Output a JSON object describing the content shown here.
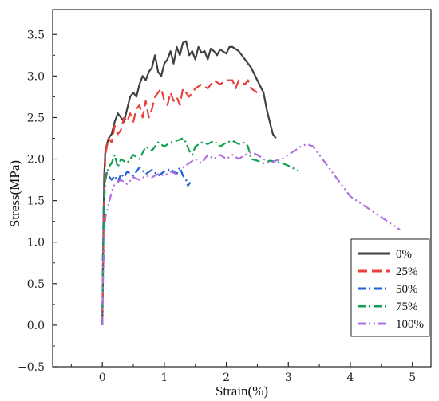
{
  "chart_data": {
    "type": "line",
    "title": "",
    "xlabel": "Strain(%)",
    "ylabel": "Stress(MPa)",
    "xlim": [
      -0.8,
      5.3
    ],
    "ylim": [
      -0.5,
      3.8
    ],
    "xticks": [
      0,
      1,
      2,
      3,
      4,
      5
    ],
    "xtick_labels": [
      "0",
      "1",
      "2",
      "3",
      "4",
      "5"
    ],
    "yticks": [
      -0.5,
      0.0,
      0.5,
      1.0,
      1.5,
      2.0,
      2.5,
      3.0,
      3.5
    ],
    "ytick_labels": [
      "−0.5",
      "0.0",
      "0.5",
      "1.0",
      "1.5",
      "2.0",
      "2.5",
      "3.0",
      "3.5"
    ],
    "grid": false,
    "legend_position": "bottom-right",
    "series": [
      {
        "name": "0%",
        "color": "#404040",
        "dash": "solid",
        "points": [
          [
            0,
            0
          ],
          [
            0.01,
            0.5
          ],
          [
            0.02,
            1.2
          ],
          [
            0.03,
            1.8
          ],
          [
            0.05,
            2.1
          ],
          [
            0.1,
            2.25
          ],
          [
            0.15,
            2.3
          ],
          [
            0.2,
            2.45
          ],
          [
            0.25,
            2.55
          ],
          [
            0.3,
            2.5
          ],
          [
            0.35,
            2.45
          ],
          [
            0.4,
            2.6
          ],
          [
            0.45,
            2.75
          ],
          [
            0.5,
            2.8
          ],
          [
            0.55,
            2.75
          ],
          [
            0.6,
            2.9
          ],
          [
            0.65,
            3.0
          ],
          [
            0.7,
            2.95
          ],
          [
            0.75,
            3.05
          ],
          [
            0.8,
            3.1
          ],
          [
            0.85,
            3.25
          ],
          [
            0.9,
            3.05
          ],
          [
            0.95,
            3.0
          ],
          [
            1.0,
            3.15
          ],
          [
            1.05,
            3.2
          ],
          [
            1.1,
            3.3
          ],
          [
            1.15,
            3.15
          ],
          [
            1.2,
            3.35
          ],
          [
            1.25,
            3.25
          ],
          [
            1.3,
            3.4
          ],
          [
            1.35,
            3.42
          ],
          [
            1.4,
            3.25
          ],
          [
            1.45,
            3.3
          ],
          [
            1.5,
            3.2
          ],
          [
            1.55,
            3.35
          ],
          [
            1.6,
            3.28
          ],
          [
            1.65,
            3.3
          ],
          [
            1.7,
            3.2
          ],
          [
            1.75,
            3.33
          ],
          [
            1.8,
            3.3
          ],
          [
            1.85,
            3.25
          ],
          [
            1.9,
            3.32
          ],
          [
            2.0,
            3.27
          ],
          [
            2.05,
            3.35
          ],
          [
            2.1,
            3.35
          ],
          [
            2.2,
            3.3
          ],
          [
            2.3,
            3.2
          ],
          [
            2.4,
            3.1
          ],
          [
            2.5,
            2.95
          ],
          [
            2.6,
            2.8
          ],
          [
            2.65,
            2.6
          ],
          [
            2.7,
            2.45
          ],
          [
            2.75,
            2.3
          ],
          [
            2.8,
            2.25
          ]
        ]
      },
      {
        "name": "25%",
        "color": "#e8403a",
        "dash": "dashed",
        "points": [
          [
            0,
            0
          ],
          [
            0.01,
            0.6
          ],
          [
            0.02,
            1.3
          ],
          [
            0.04,
            1.8
          ],
          [
            0.05,
            2.05
          ],
          [
            0.1,
            2.25
          ],
          [
            0.15,
            2.2
          ],
          [
            0.2,
            2.4
          ],
          [
            0.25,
            2.3
          ],
          [
            0.3,
            2.35
          ],
          [
            0.35,
            2.5
          ],
          [
            0.4,
            2.45
          ],
          [
            0.45,
            2.55
          ],
          [
            0.5,
            2.45
          ],
          [
            0.55,
            2.6
          ],
          [
            0.6,
            2.65
          ],
          [
            0.65,
            2.5
          ],
          [
            0.7,
            2.7
          ],
          [
            0.75,
            2.5
          ],
          [
            0.8,
            2.6
          ],
          [
            0.85,
            2.75
          ],
          [
            0.9,
            2.8
          ],
          [
            0.95,
            2.85
          ],
          [
            1.0,
            2.7
          ],
          [
            1.05,
            2.65
          ],
          [
            1.1,
            2.8
          ],
          [
            1.15,
            2.7
          ],
          [
            1.2,
            2.75
          ],
          [
            1.25,
            2.65
          ],
          [
            1.3,
            2.85
          ],
          [
            1.35,
            2.8
          ],
          [
            1.4,
            2.75
          ],
          [
            1.5,
            2.85
          ],
          [
            1.6,
            2.9
          ],
          [
            1.7,
            2.85
          ],
          [
            1.8,
            2.95
          ],
          [
            1.9,
            2.9
          ],
          [
            2.0,
            2.95
          ],
          [
            2.1,
            2.95
          ],
          [
            2.15,
            2.85
          ],
          [
            2.2,
            2.95
          ],
          [
            2.3,
            2.9
          ],
          [
            2.35,
            2.95
          ],
          [
            2.4,
            2.85
          ],
          [
            2.5,
            2.8
          ]
        ]
      },
      {
        "name": "50%",
        "color": "#2060d8",
        "dash": "dash-dot",
        "points": [
          [
            0,
            0
          ],
          [
            0.01,
            0.8
          ],
          [
            0.02,
            1.4
          ],
          [
            0.04,
            1.7
          ],
          [
            0.06,
            1.85
          ],
          [
            0.1,
            1.8
          ],
          [
            0.15,
            1.75
          ],
          [
            0.2,
            1.8
          ],
          [
            0.25,
            1.72
          ],
          [
            0.3,
            1.82
          ],
          [
            0.35,
            1.78
          ],
          [
            0.4,
            1.85
          ],
          [
            0.5,
            1.8
          ],
          [
            0.6,
            1.9
          ],
          [
            0.7,
            1.82
          ],
          [
            0.8,
            1.87
          ],
          [
            0.9,
            1.8
          ],
          [
            1.0,
            1.85
          ],
          [
            1.1,
            1.88
          ],
          [
            1.2,
            1.82
          ],
          [
            1.25,
            1.9
          ],
          [
            1.3,
            1.8
          ],
          [
            1.35,
            1.75
          ],
          [
            1.38,
            1.68
          ],
          [
            1.42,
            1.72
          ]
        ]
      },
      {
        "name": "75%",
        "color": "#10a050",
        "dash": "dash-dot",
        "points": [
          [
            0,
            0
          ],
          [
            0.01,
            0.9
          ],
          [
            0.03,
            1.5
          ],
          [
            0.05,
            1.75
          ],
          [
            0.1,
            1.9
          ],
          [
            0.15,
            1.95
          ],
          [
            0.2,
            2.05
          ],
          [
            0.25,
            1.9
          ],
          [
            0.3,
            2.0
          ],
          [
            0.4,
            1.95
          ],
          [
            0.5,
            2.05
          ],
          [
            0.6,
            2.0
          ],
          [
            0.7,
            2.15
          ],
          [
            0.8,
            2.1
          ],
          [
            0.9,
            2.2
          ],
          [
            1.0,
            2.15
          ],
          [
            1.1,
            2.2
          ],
          [
            1.2,
            2.22
          ],
          [
            1.3,
            2.25
          ],
          [
            1.35,
            2.2
          ],
          [
            1.4,
            2.1
          ],
          [
            1.45,
            2.05
          ],
          [
            1.5,
            2.15
          ],
          [
            1.6,
            2.2
          ],
          [
            1.7,
            2.18
          ],
          [
            1.8,
            2.22
          ],
          [
            1.9,
            2.15
          ],
          [
            2.0,
            2.2
          ],
          [
            2.1,
            2.22
          ],
          [
            2.2,
            2.18
          ],
          [
            2.3,
            2.2
          ],
          [
            2.35,
            2.15
          ],
          [
            2.4,
            2.0
          ],
          [
            2.5,
            1.98
          ],
          [
            2.6,
            1.95
          ],
          [
            2.7,
            1.98
          ],
          [
            2.8,
            1.97
          ],
          [
            2.9,
            1.95
          ],
          [
            3.0,
            1.92
          ],
          [
            3.1,
            1.88
          ],
          [
            3.15,
            1.86
          ]
        ]
      },
      {
        "name": "100%",
        "color": "#b070e0",
        "dash": "dash-dot-dot",
        "points": [
          [
            0,
            0
          ],
          [
            0.01,
            0.5
          ],
          [
            0.03,
            1.0
          ],
          [
            0.05,
            1.3
          ],
          [
            0.1,
            1.45
          ],
          [
            0.15,
            1.6
          ],
          [
            0.2,
            1.7
          ],
          [
            0.3,
            1.75
          ],
          [
            0.4,
            1.7
          ],
          [
            0.5,
            1.78
          ],
          [
            0.6,
            1.75
          ],
          [
            0.7,
            1.8
          ],
          [
            0.8,
            1.78
          ],
          [
            0.9,
            1.82
          ],
          [
            1.0,
            1.8
          ],
          [
            1.1,
            1.85
          ],
          [
            1.2,
            1.82
          ],
          [
            1.3,
            1.9
          ],
          [
            1.4,
            1.95
          ],
          [
            1.5,
            2.0
          ],
          [
            1.6,
            1.95
          ],
          [
            1.7,
            2.05
          ],
          [
            1.8,
            2.0
          ],
          [
            1.9,
            2.05
          ],
          [
            2.0,
            2.0
          ],
          [
            2.1,
            2.05
          ],
          [
            2.2,
            2.0
          ],
          [
            2.3,
            2.05
          ],
          [
            2.4,
            2.08
          ],
          [
            2.5,
            2.05
          ],
          [
            2.6,
            2.0
          ],
          [
            2.7,
            1.95
          ],
          [
            2.8,
            1.98
          ],
          [
            2.9,
            2.0
          ],
          [
            3.0,
            2.05
          ],
          [
            3.1,
            2.1
          ],
          [
            3.2,
            2.15
          ],
          [
            3.3,
            2.18
          ],
          [
            3.4,
            2.15
          ],
          [
            3.5,
            2.05
          ],
          [
            3.6,
            1.95
          ],
          [
            3.7,
            1.85
          ],
          [
            3.8,
            1.75
          ],
          [
            3.9,
            1.65
          ],
          [
            4.0,
            1.55
          ],
          [
            4.1,
            1.5
          ],
          [
            4.2,
            1.45
          ],
          [
            4.3,
            1.4
          ],
          [
            4.4,
            1.35
          ],
          [
            4.5,
            1.3
          ],
          [
            4.6,
            1.25
          ],
          [
            4.7,
            1.2
          ],
          [
            4.8,
            1.15
          ]
        ]
      }
    ]
  }
}
